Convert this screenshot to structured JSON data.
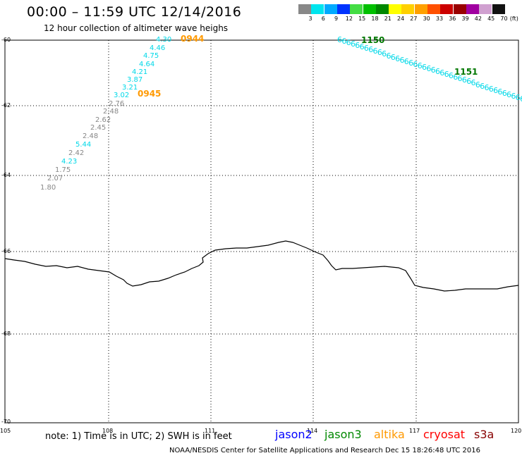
{
  "header": {
    "title": "00:00 – 11:59 UTC 12/14/2016",
    "subtitle": "12 hour collection of altimeter wave heighs"
  },
  "scale": {
    "labels": [
      "3",
      "6",
      "9",
      "12",
      "15",
      "18",
      "21",
      "24",
      "27",
      "30",
      "33",
      "36",
      "39",
      "42",
      "45",
      "70"
    ],
    "unit": "(ft)",
    "colors": [
      "#888888",
      "#00e5ee",
      "#00aaff",
      "#0033ff",
      "#44dd44",
      "#00c000",
      "#008800",
      "#ffff00",
      "#ffd000",
      "#ffa000",
      "#ff5000",
      "#cc0000",
      "#990000",
      "#a000a0",
      "#d0a0d0",
      "#111111"
    ]
  },
  "axes": {
    "lat_labels": [
      "-60",
      "-62",
      "-64",
      "-66",
      "-68",
      "-70"
    ],
    "lon_labels": [
      "105",
      "108",
      "111",
      "114",
      "117",
      "120"
    ]
  },
  "tracks": {
    "west_swh": [
      {
        "v": "4.30",
        "c": "#00d8e8"
      },
      {
        "v": "4.46",
        "c": "#00d8e8"
      },
      {
        "v": "4.75",
        "c": "#00d8e8"
      },
      {
        "v": "4.64",
        "c": "#00d8e8"
      },
      {
        "v": "4.21",
        "c": "#00d8e8"
      },
      {
        "v": "3.87",
        "c": "#00d8e8"
      },
      {
        "v": "3.21",
        "c": "#00d8e8"
      },
      {
        "v": "3.02",
        "c": "#00d8e8"
      },
      {
        "v": "2.76",
        "c": "#888888"
      },
      {
        "v": "2.48",
        "c": "#888888"
      },
      {
        "v": "2.62",
        "c": "#888888"
      },
      {
        "v": "2.45",
        "c": "#888888"
      },
      {
        "v": "2.48",
        "c": "#888888"
      },
      {
        "v": "5.44",
        "c": "#00d8e8"
      },
      {
        "v": "2.42",
        "c": "#888888"
      },
      {
        "v": "4.23",
        "c": "#00d8e8"
      },
      {
        "v": "1.75",
        "c": "#888888"
      },
      {
        "v": "2.07",
        "c": "#888888"
      },
      {
        "v": "1.80",
        "c": "#888888"
      }
    ],
    "west_times": [
      "0944",
      "0945"
    ],
    "east_times": [
      "1150",
      "1151"
    ]
  },
  "legend": {
    "note": "note: 1) Time is in UTC; 2) SWH is in feet",
    "satellites": [
      {
        "name": "jason2",
        "color": "#0000ff"
      },
      {
        "name": "jason3",
        "color": "#008800"
      },
      {
        "name": "altika",
        "color": "#ff9900"
      },
      {
        "name": "cryosat",
        "color": "#ff0000"
      },
      {
        "name": "s3a",
        "color": "#880000"
      }
    ]
  },
  "footer": {
    "credit": "NOAA/NESDIS Center for Satellite Applications and Research    Dec 15 18:26:48 UTC 2016"
  }
}
